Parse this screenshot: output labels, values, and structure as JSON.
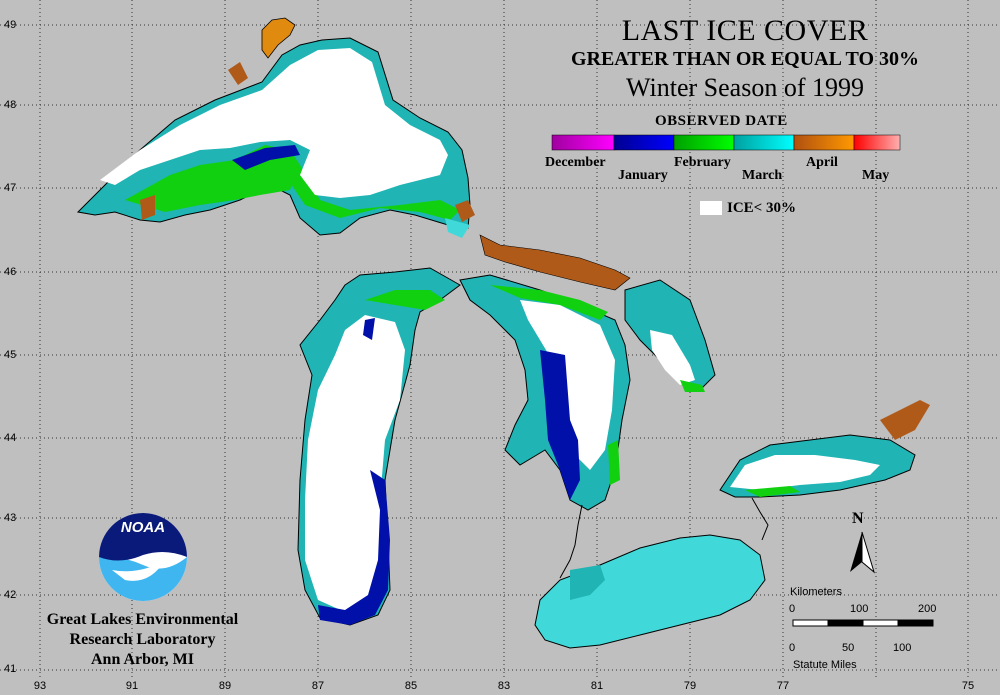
{
  "title": {
    "line1": "LAST ICE COVER",
    "line2": "GREATER THAN OR EQUAL TO 30%",
    "line3": "Winter Season of 1999"
  },
  "legend": {
    "title": "OBSERVED DATE",
    "months": [
      "December",
      "January",
      "February",
      "March",
      "April",
      "May"
    ],
    "colors": {
      "December": [
        "#a000a0",
        "#ff00ff"
      ],
      "January": [
        "#000090",
        "#0000ff"
      ],
      "February": [
        "#00a000",
        "#00ff00"
      ],
      "March": [
        "#00a0a0",
        "#00ffff"
      ],
      "April": [
        "#b05010",
        "#ff9900"
      ],
      "May": [
        "#ff0000",
        "#ffb0b0"
      ]
    },
    "ice_label": "ICE< 30%",
    "ice_color": "#ffffff"
  },
  "grid": {
    "latitudes": [
      "49",
      "48",
      "47",
      "46",
      "45",
      "44",
      "43",
      "42",
      "41"
    ],
    "longitudes": [
      "93",
      "91",
      "89",
      "87",
      "85",
      "83",
      "81",
      "79",
      "77",
      "75"
    ]
  },
  "organization": {
    "line1": "Great Lakes Environmental",
    "line2": "Research Laboratory",
    "line3": "Ann Arbor, MI",
    "logo_text": "NOAA"
  },
  "scale": {
    "km_label": "Kilometers",
    "km_ticks": [
      "0",
      "100",
      "200"
    ],
    "mi_ticks": [
      "0",
      "50",
      "100"
    ],
    "mi_label": "Statute Miles"
  },
  "north": "N",
  "colors": {
    "background": "#bfbfbf",
    "ice_white": "#ffffff",
    "teal": "#20b4b4",
    "teal_light": "#40d8d8",
    "blue": "#0010a8",
    "green": "#10d010",
    "brown": "#b05a1a",
    "orange": "#e08a10"
  }
}
